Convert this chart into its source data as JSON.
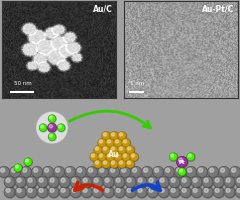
{
  "fig_width": 2.4,
  "fig_height": 2.01,
  "dpi": 100,
  "panel_left": {
    "label": "Au/C",
    "scale_bar": "50 nm",
    "noise_seed": 42
  },
  "panel_right": {
    "label": "Au-Pt/C",
    "scale_bar": "1 nm",
    "noise_seed": 7
  },
  "schematic": {
    "bg_color": "#b8b8b8",
    "carbon_color": "#787878",
    "carbon_edge": "#505050",
    "gold_color": "#c8960a",
    "gold_edge": "#a07808",
    "green_color": "#44ee00",
    "green_edge": "#22aa00",
    "purple_color": "#993399",
    "purple_edge": "#661166",
    "arrow_red": "#cc2200",
    "arrow_blue": "#1144cc",
    "arrow_green": "#33cc00"
  }
}
